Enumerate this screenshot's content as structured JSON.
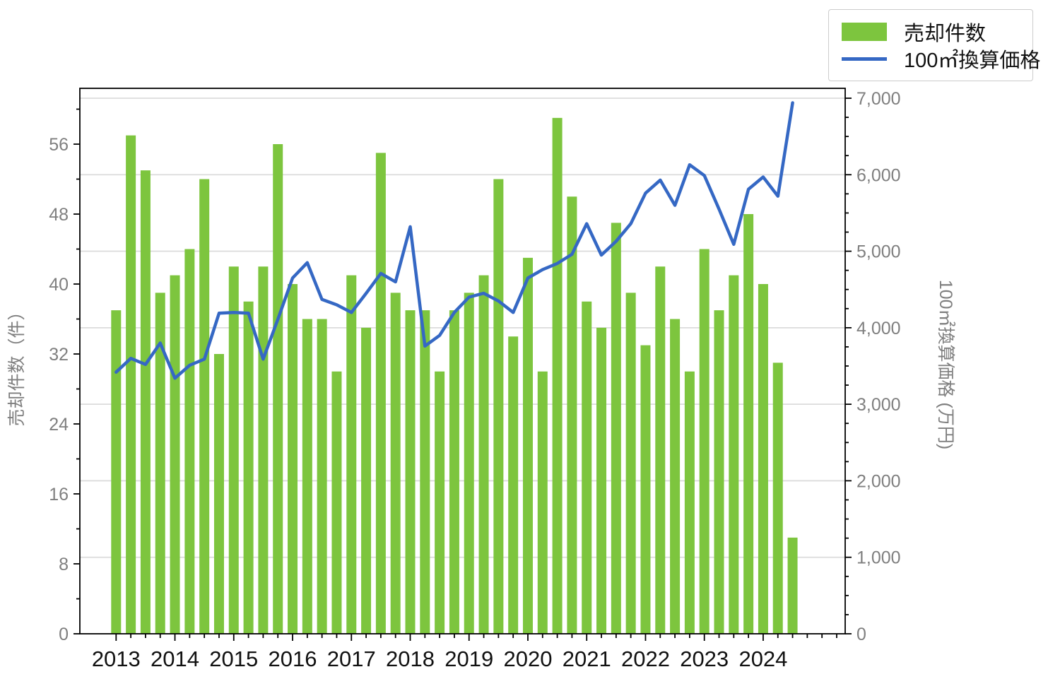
{
  "legend": {
    "bar_label": "売却件数",
    "line_label": "100㎡換算価格"
  },
  "axes": {
    "left_title": "売却件数（件）",
    "right_title": "100㎡換算価格 (万円)",
    "left_ticks": [
      0,
      8,
      16,
      24,
      32,
      40,
      48,
      56
    ],
    "right_ticks": [
      0,
      1000,
      2000,
      3000,
      4000,
      5000,
      6000,
      7000
    ],
    "x_year_labels": [
      "2013",
      "2014",
      "2015",
      "2016",
      "2017",
      "2018",
      "2019",
      "2020",
      "2021",
      "2022",
      "2023",
      "2024"
    ]
  },
  "colors": {
    "bar": "#7dc53e",
    "line": "#3568c4",
    "grid": "#dcdcdc",
    "axis": "#000000",
    "tick_label": "#7f7f7f",
    "year_label": "#111111"
  },
  "chart_data": {
    "type": "bar+line",
    "title": "",
    "xlabel": "",
    "ylabel_left": "売却件数（件）",
    "ylabel_right": "100㎡換算価格 (万円)",
    "ylim_left": [
      0,
      62.4
    ],
    "ylim_right": [
      0,
      7130
    ],
    "grid": "horizontal, right-axis thousands",
    "legend_position": "outside upper right",
    "categories": [
      "2013Q1",
      "2013Q2",
      "2013Q3",
      "2013Q4",
      "2014Q1",
      "2014Q2",
      "2014Q3",
      "2014Q4",
      "2015Q1",
      "2015Q2",
      "2015Q3",
      "2015Q4",
      "2016Q1",
      "2016Q2",
      "2016Q3",
      "2016Q4",
      "2017Q1",
      "2017Q2",
      "2017Q3",
      "2017Q4",
      "2018Q1",
      "2018Q2",
      "2018Q3",
      "2018Q4",
      "2019Q1",
      "2019Q2",
      "2019Q3",
      "2019Q4",
      "2020Q1",
      "2020Q2",
      "2020Q3",
      "2020Q4",
      "2021Q1",
      "2021Q2",
      "2021Q3",
      "2021Q4",
      "2022Q1",
      "2022Q2",
      "2022Q3",
      "2022Q4",
      "2023Q1",
      "2023Q2",
      "2023Q3",
      "2023Q4",
      "2024Q1",
      "2024Q2",
      "2024Q3"
    ],
    "series": [
      {
        "name": "売却件数",
        "type": "bar",
        "axis": "left",
        "unit": "件",
        "values": [
          37,
          57,
          53,
          39,
          41,
          44,
          52,
          32,
          42,
          38,
          42,
          56,
          40,
          36,
          36,
          30,
          41,
          35,
          55,
          39,
          37,
          37,
          30,
          37,
          39,
          41,
          52,
          34,
          43,
          30,
          59,
          50,
          38,
          35,
          47,
          39,
          33,
          42,
          36,
          30,
          44,
          37,
          41,
          48,
          40,
          31,
          11
        ]
      },
      {
        "name": "100㎡換算価格",
        "type": "line",
        "axis": "right",
        "unit": "万円",
        "values": [
          3420,
          3600,
          3520,
          3800,
          3340,
          3510,
          3590,
          4190,
          4200,
          4190,
          3590,
          4110,
          4650,
          4850,
          4370,
          4300,
          4200,
          4450,
          4710,
          4600,
          5320,
          3760,
          3900,
          4200,
          4400,
          4450,
          4350,
          4200,
          4650,
          4760,
          4840,
          4960,
          5360,
          4950,
          5130,
          5360,
          5760,
          5930,
          5600,
          6130,
          5990,
          5550,
          5090,
          5810,
          5970,
          5720,
          6940
        ]
      }
    ]
  }
}
